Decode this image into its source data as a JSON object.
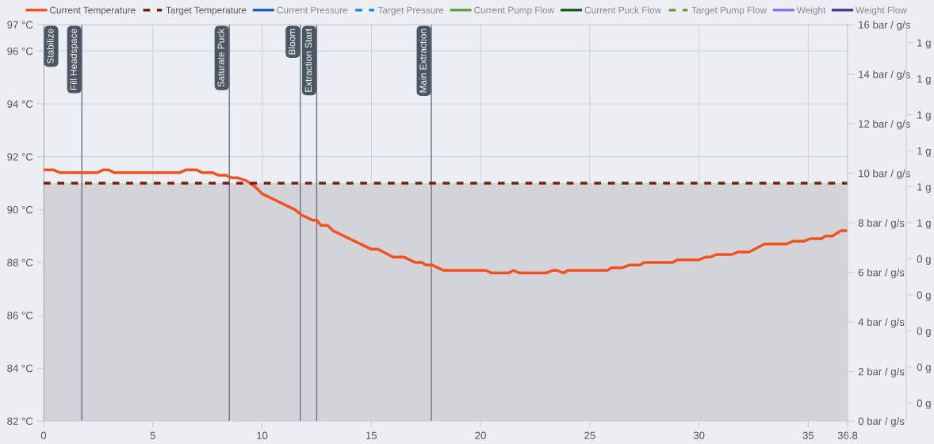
{
  "chart_data": {
    "type": "line",
    "xlim": [
      0,
      36.8
    ],
    "xticks": [
      0,
      5,
      10,
      15,
      20,
      25,
      30,
      35,
      36.8
    ],
    "ylim": [
      82,
      97
    ],
    "yticks": [
      {
        "value": 82,
        "label": "82 °C"
      },
      {
        "value": 84,
        "label": "84 °C"
      },
      {
        "value": 86,
        "label": "86 °C"
      },
      {
        "value": 88,
        "label": "88 °C"
      },
      {
        "value": 90,
        "label": "90 °C"
      },
      {
        "value": 92,
        "label": "92 °C"
      },
      {
        "value": 94,
        "label": "94 °C"
      },
      {
        "value": 96,
        "label": "96 °C"
      },
      {
        "value": 97,
        "label": "97 °C"
      }
    ],
    "y2lim": [
      0,
      16
    ],
    "y2ticks": [
      {
        "value": 0,
        "label": "0 bar / g/s"
      },
      {
        "value": 2,
        "label": "2 bar / g/s"
      },
      {
        "value": 4,
        "label": "4 bar / g/s"
      },
      {
        "value": 6,
        "label": "6 bar / g/s"
      },
      {
        "value": 8,
        "label": "8 bar / g/s"
      },
      {
        "value": 10,
        "label": "10 bar / g/s"
      },
      {
        "value": 12,
        "label": "12 bar / g/s"
      },
      {
        "value": 14,
        "label": "14 bar / g/s"
      },
      {
        "value": 16,
        "label": "16 bar / g/s"
      }
    ],
    "y3lim": [
      -0.05,
      1.05
    ],
    "y3ticks": [
      {
        "value": 0,
        "label": "0 g"
      },
      {
        "value": 0.1,
        "label": "0 g"
      },
      {
        "value": 0.2,
        "label": "0 g"
      },
      {
        "value": 0.3,
        "label": "0 g"
      },
      {
        "value": 0.4,
        "label": "0 g"
      },
      {
        "value": 0.5,
        "label": "1 g"
      },
      {
        "value": 0.6,
        "label": "1 g"
      },
      {
        "value": 0.7,
        "label": "1 g"
      },
      {
        "value": 0.8,
        "label": "1 g"
      },
      {
        "value": 0.9,
        "label": "1 g"
      },
      {
        "value": 1.0,
        "label": "1 g"
      }
    ],
    "grid": true,
    "legend": "top",
    "series": [
      {
        "name": "Current Temperature",
        "color": "#f4511e",
        "line_style": "solid",
        "x": [
          0,
          0.47,
          0.73,
          2.47,
          2.72,
          2.98,
          3.23,
          6.24,
          6.5,
          7.0,
          7.26,
          7.73,
          8.0,
          8.35,
          8.6,
          8.9,
          9.26,
          9.7,
          10.0,
          11.5,
          11.8,
          12.3,
          12.5,
          12.7,
          13.0,
          13.25,
          15.0,
          15.3,
          16.0,
          16.5,
          17.0,
          17.3,
          17.5,
          17.8,
          18.3,
          20.25,
          20.5,
          21.3,
          21.5,
          21.8,
          23.0,
          23.3,
          23.5,
          23.8,
          24.0,
          25.8,
          26.0,
          26.5,
          26.8,
          27.3,
          27.5,
          28.8,
          29.0,
          30.0,
          30.3,
          30.5,
          30.8,
          31.5,
          31.8,
          32.3,
          33.0,
          34.0,
          34.3,
          34.8,
          35.1,
          35.6,
          35.8,
          36.1,
          36.5,
          36.8
        ],
        "values": [
          91.5,
          91.5,
          91.4,
          91.4,
          91.5,
          91.5,
          91.4,
          91.4,
          91.5,
          91.5,
          91.4,
          91.4,
          91.3,
          91.3,
          91.2,
          91.2,
          91.1,
          90.85,
          90.6,
          90.0,
          89.8,
          89.6,
          89.6,
          89.4,
          89.4,
          89.2,
          88.5,
          88.5,
          88.2,
          88.2,
          88.0,
          88.0,
          87.9,
          87.9,
          87.7,
          87.7,
          87.6,
          87.6,
          87.7,
          87.6,
          87.6,
          87.7,
          87.7,
          87.6,
          87.7,
          87.7,
          87.8,
          87.8,
          87.9,
          87.9,
          88.0,
          88.0,
          88.1,
          88.1,
          88.2,
          88.2,
          88.3,
          88.3,
          88.4,
          88.4,
          88.7,
          88.7,
          88.8,
          88.8,
          88.9,
          88.9,
          89.0,
          89.0,
          89.2,
          89.2
        ]
      },
      {
        "name": "Target Temperature",
        "type": "area",
        "color": "#7b1c0c",
        "line_style": "dashed",
        "x": [
          0,
          36.8
        ],
        "values": [
          91,
          91
        ]
      },
      {
        "name": "Current Pressure",
        "color": "#1565c0",
        "line_style": "solid"
      },
      {
        "name": "Target Pressure",
        "color": "#1e88e5",
        "line_style": "dashed"
      },
      {
        "name": "Current Pump Flow",
        "color": "#66a040",
        "line_style": "solid"
      },
      {
        "name": "Current Puck Flow",
        "color": "#1b5e20",
        "line_style": "solid"
      },
      {
        "name": "Target Pump Flow",
        "color": "#6a9e45",
        "line_style": "dashed"
      },
      {
        "name": "Weight",
        "color": "#9c6bff",
        "line_style": "solid"
      },
      {
        "name": "Weight Flow",
        "color": "#4a3a9a",
        "line_style": "solid"
      }
    ],
    "ref_lines": [
      {
        "axis": "x",
        "value": 0,
        "label": "Stabilize",
        "color": "#6b7280"
      },
      {
        "axis": "x",
        "value": 1.75,
        "label": "Fill Headspace",
        "color": "#6b7280"
      },
      {
        "axis": "x",
        "value": 8.5,
        "label": "Saturate Puck",
        "color": "#6b7280"
      },
      {
        "axis": "x",
        "value": 11.75,
        "label": "Bloom",
        "color": "#6b7280"
      },
      {
        "axis": "x",
        "value": 12.5,
        "label": "Extraction Start",
        "color": "#6b7280"
      },
      {
        "axis": "x",
        "value": 17.75,
        "label": "Main Extraction",
        "color": "#6b7280"
      }
    ]
  }
}
